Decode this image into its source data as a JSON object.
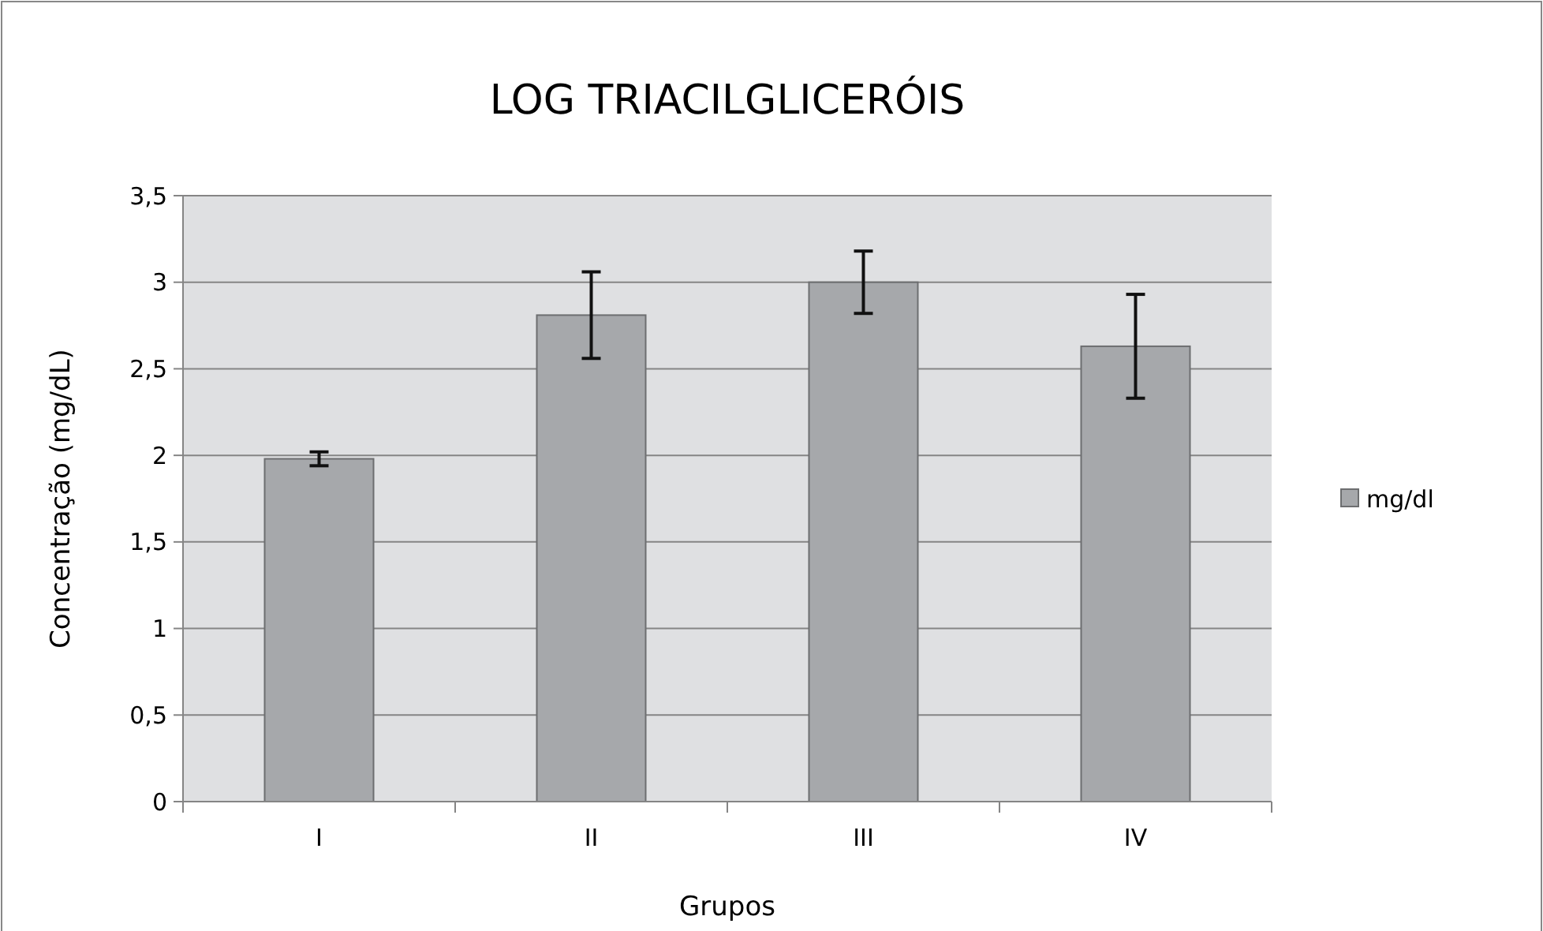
{
  "chart_data": {
    "type": "bar",
    "title": "LOG TRIACILGLICERÓIS",
    "xlabel": "Grupos",
    "ylabel": "Concentração (mg/dL)",
    "categories": [
      "I",
      "II",
      "III",
      "IV"
    ],
    "series": [
      {
        "name": "mg/dl",
        "color": "#a6a8ab",
        "values": [
          1.98,
          2.81,
          3.0,
          2.63
        ],
        "errors": [
          0.04,
          0.25,
          0.18,
          0.3
        ]
      }
    ],
    "ylim": [
      0,
      3.5
    ],
    "yticks": [
      {
        "value": 0,
        "label": "0"
      },
      {
        "value": 0.5,
        "label": "0,5"
      },
      {
        "value": 1,
        "label": "1"
      },
      {
        "value": 1.5,
        "label": "1,5"
      },
      {
        "value": 2,
        "label": "2"
      },
      {
        "value": 2.5,
        "label": "2,5"
      },
      {
        "value": 3,
        "label": "3"
      },
      {
        "value": 3.5,
        "label": "3,5"
      }
    ],
    "grid": "y",
    "legend": "right"
  }
}
